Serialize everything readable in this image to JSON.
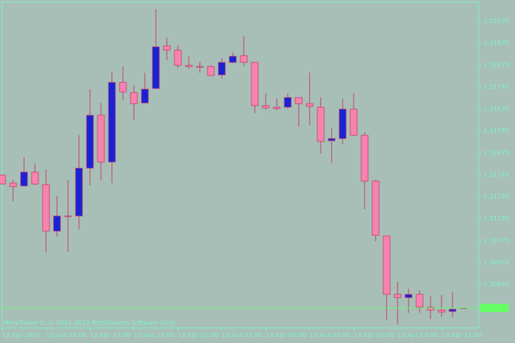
{
  "chart_data": {
    "type": "candlestick",
    "annotation": "MetaTrader 5, © 2001-2012 MetaQuotes Software Corp.",
    "categories": [
      "12 Apr 2012",
      null,
      null,
      null,
      "12 Apr 09:00",
      null,
      null,
      null,
      "12 Apr 13:00",
      null,
      null,
      null,
      "12 Apr 17:00",
      null,
      null,
      null,
      "12 Apr 21:00",
      null,
      null,
      null,
      "13 Apr 01:00",
      null,
      null,
      null,
      "13 Apr 05:00",
      null,
      null,
      null,
      "13 Apr 09:00",
      null,
      null,
      null,
      "13 Apr 13:00",
      null,
      null,
      null,
      "13 Apr 17:00",
      null,
      null,
      null,
      "13 Apr 21:00",
      null,
      null
    ],
    "open": [
      1.3137,
      1.31333,
      1.3132,
      1.31383,
      1.31326,
      1.31114,
      1.31183,
      1.31183,
      1.31401,
      1.31642,
      1.31429,
      1.31792,
      1.31745,
      1.31698,
      1.31764,
      1.31958,
      1.31939,
      1.3187,
      1.31864,
      1.31864,
      1.31826,
      1.31883,
      1.31914,
      1.31883,
      1.31686,
      1.31679,
      1.31679,
      1.31723,
      1.31695,
      1.31679,
      1.31526,
      1.31536,
      1.3167,
      1.31551,
      1.31342,
      1.31092,
      1.30826,
      1.30811,
      1.30826,
      1.30767,
      1.30754,
      1.30748,
      1.30764
    ],
    "high": [
      1.3137,
      1.31348,
      1.31451,
      1.31423,
      1.31395,
      1.31276,
      1.31348,
      1.31551,
      1.31761,
      1.31698,
      1.31842,
      1.31864,
      1.31779,
      1.31836,
      1.32126,
      1.31995,
      1.31961,
      1.31911,
      1.31886,
      1.3187,
      1.31901,
      1.31929,
      1.32004,
      1.31883,
      1.31739,
      1.3172,
      1.31742,
      1.31723,
      1.31836,
      1.31723,
      1.31586,
      1.31717,
      1.31742,
      1.31564,
      1.31348,
      1.31092,
      1.30883,
      1.30851,
      1.30845,
      1.3082,
      1.30823,
      1.30836,
      1.30764
    ],
    "low": [
      1.31329,
      1.31251,
      1.31317,
      1.31323,
      1.31017,
      1.31089,
      1.3102,
      1.3112,
      1.31323,
      1.31345,
      1.31333,
      1.31711,
      1.3162,
      1.31698,
      1.31764,
      1.31892,
      1.31858,
      1.31854,
      1.31836,
      1.31823,
      1.31808,
      1.31879,
      1.31867,
      1.31651,
      1.31667,
      1.31664,
      1.31673,
      1.31589,
      1.31595,
      1.31467,
      1.31423,
      1.31511,
      1.31548,
      1.31214,
      1.31067,
      1.30708,
      1.30689,
      1.30742,
      1.30742,
      1.30714,
      1.30723,
      1.30723,
      1.30764
    ],
    "close": [
      1.31329,
      1.31317,
      1.31383,
      1.31329,
      1.31114,
      1.31183,
      1.31183,
      1.31401,
      1.31642,
      1.31429,
      1.31792,
      1.31748,
      1.31695,
      1.31761,
      1.31954,
      1.31939,
      1.3187,
      1.31864,
      1.31864,
      1.31823,
      1.31883,
      1.31911,
      1.31883,
      1.31686,
      1.31676,
      1.31673,
      1.31723,
      1.31695,
      1.31683,
      1.31523,
      1.31536,
      1.3167,
      1.31551,
      1.31342,
      1.31095,
      1.30826,
      1.30811,
      1.30826,
      1.30767,
      1.30754,
      1.30745,
      1.30758,
      1.30764
    ],
    "ylim": [
      1.30673,
      1.32158
    ],
    "yticks": [
      {
        "value": 1.3087,
        "label": "1.30870"
      },
      {
        "value": 1.3097,
        "label": "1.30970"
      },
      {
        "value": 1.3107,
        "label": "1.31070"
      },
      {
        "value": 1.3117,
        "label": "1.31170"
      },
      {
        "value": 1.3127,
        "label": "1.31270"
      },
      {
        "value": 1.3137,
        "label": "1.31370"
      },
      {
        "value": 1.3147,
        "label": "1.31470"
      },
      {
        "value": 1.3157,
        "label": "1.31570"
      },
      {
        "value": 1.3167,
        "label": "1.31670"
      },
      {
        "value": 1.3177,
        "label": "1.31770"
      },
      {
        "value": 1.3187,
        "label": "1.31870"
      },
      {
        "value": 1.3197,
        "label": "1.31970"
      },
      {
        "value": 1.3207,
        "label": "1.32070"
      }
    ],
    "bid_line": 1.30764,
    "bid_color": "#66ff66",
    "up_color": "#1a22d6",
    "down_color": "#f783b0",
    "wick_color": "#c23a66",
    "background": "#a7bfb7",
    "axis_color": "#7ff2d2"
  }
}
